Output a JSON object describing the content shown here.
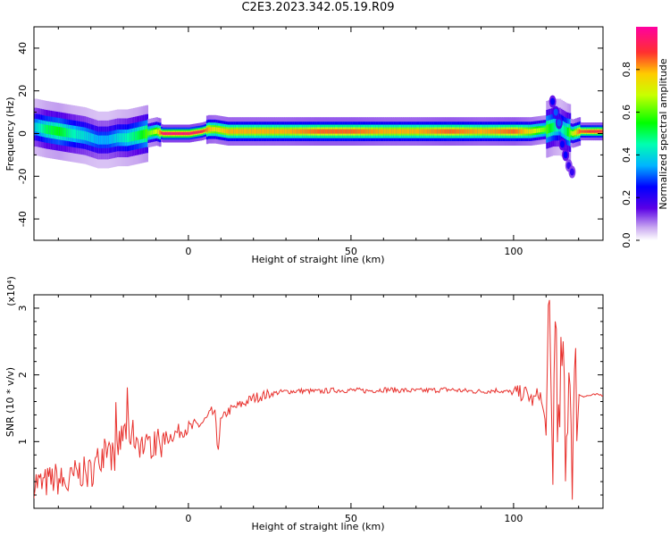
{
  "title": "C2E3.2023.342.05.19.R09",
  "colors": {
    "snr_line": "#e8302c",
    "frame": "#000000"
  },
  "chart_data": [
    {
      "type": "heatmap",
      "title": "C2E3.2023.342.05.19.R09",
      "xlabel": "Height of straight line (km)",
      "ylabel": "Frequency (Hz)",
      "xlim": [
        -47.5,
        127.5
      ],
      "ylim": [
        -50,
        50
      ],
      "x_ticks": [
        "0",
        "50",
        "100"
      ],
      "x_tick_values": [
        0,
        50,
        100
      ],
      "y_ticks": [
        "-40",
        "-20",
        "0",
        "20",
        "40"
      ],
      "y_tick_values": [
        -40,
        -20,
        0,
        20,
        40
      ],
      "colorbar": {
        "label": "Normalized spectral amplitude",
        "range": [
          0,
          1
        ],
        "ticks": [
          "0.0",
          "0.2",
          "0.4",
          "0.6",
          "0.8"
        ],
        "tick_values": [
          0,
          0.2,
          0.4,
          0.6,
          0.8
        ]
      },
      "ridge": {
        "x": [
          -47,
          -44,
          -40,
          -36,
          -32,
          -28,
          -25,
          -22,
          -19,
          -16,
          -13,
          -10,
          -8,
          -4,
          0,
          4,
          6,
          8,
          12,
          20,
          30,
          40,
          50,
          60,
          70,
          80,
          90,
          100,
          105,
          110,
          112,
          114,
          116,
          118,
          120,
          125,
          127.5
        ],
        "y": [
          3,
          2,
          1,
          0,
          -1,
          -3,
          -3,
          -2,
          -2,
          -1,
          0,
          1,
          0,
          0,
          0,
          1,
          2,
          2,
          1,
          1,
          1,
          1,
          1,
          1,
          1,
          1,
          1,
          1,
          1,
          2,
          3,
          3,
          1,
          0,
          1,
          1,
          1
        ],
        "amplitude": [
          0.4,
          0.5,
          0.55,
          0.45,
          0.4,
          0.35,
          0.35,
          0.4,
          0.45,
          0.5,
          0.6,
          0.7,
          0.95,
          0.95,
          0.95,
          0.9,
          0.8,
          0.75,
          0.8,
          0.8,
          0.8,
          0.85,
          0.85,
          0.8,
          0.8,
          0.85,
          0.8,
          0.85,
          0.75,
          0.6,
          0.5,
          0.4,
          0.5,
          0.7,
          0.85,
          0.9,
          0.9
        ]
      },
      "features": {
        "x": [
          112,
          113,
          114,
          115,
          116,
          117,
          118
        ],
        "y": [
          15,
          10,
          5,
          -5,
          -10,
          -15,
          -18
        ],
        "amplitude": [
          0.25,
          0.3,
          0.3,
          0.25,
          0.25,
          0.2,
          0.2
        ]
      }
    },
    {
      "type": "line",
      "xlabel": "Height of straight line (km)",
      "ylabel": "SNR (10 * v/v)",
      "y_multiplier": "(x10⁴)",
      "xlim": [
        -47.5,
        127.5
      ],
      "ylim": [
        0,
        3.2
      ],
      "x_ticks": [
        "0",
        "50",
        "100"
      ],
      "x_tick_values": [
        0,
        50,
        100
      ],
      "y_ticks": [
        "1",
        "2",
        "3"
      ],
      "y_tick_values": [
        1,
        2,
        3
      ],
      "series": [
        {
          "x": [
            -47,
            -45,
            -43,
            -41,
            -39,
            -37,
            -35,
            -33,
            -31,
            -29,
            -27,
            -25,
            -23,
            -21,
            -19,
            -17,
            -15,
            -13,
            -11,
            -9,
            -7,
            -5,
            -3,
            -1,
            1,
            3,
            5,
            7,
            8,
            9,
            10,
            12,
            14,
            16,
            18,
            20,
            22,
            24,
            26,
            28,
            30,
            35,
            40,
            45,
            50,
            55,
            60,
            65,
            70,
            75,
            80,
            85,
            90,
            95,
            100,
            104,
            106,
            108,
            110,
            111,
            112,
            113,
            114,
            115,
            116,
            117,
            118,
            119,
            120,
            122,
            125,
            127.5
          ],
          "y": [
            0.4,
            0.35,
            0.4,
            0.45,
            0.4,
            0.35,
            0.5,
            0.55,
            0.5,
            0.6,
            0.8,
            0.9,
            0.75,
            1.0,
            1.2,
            1.1,
            1.0,
            0.9,
            1.0,
            0.95,
            1.05,
            1.1,
            1.15,
            1.2,
            1.2,
            1.25,
            1.3,
            1.4,
            1.45,
            0.9,
            1.3,
            1.45,
            1.5,
            1.55,
            1.6,
            1.65,
            1.68,
            1.7,
            1.72,
            1.74,
            1.75,
            1.76,
            1.75,
            1.77,
            1.77,
            1.76,
            1.78,
            1.77,
            1.76,
            1.77,
            1.78,
            1.76,
            1.75,
            1.77,
            1.73,
            1.72,
            1.6,
            1.75,
            1.2,
            2.6,
            0.6,
            3.2,
            0.5,
            2.7,
            0.15,
            2.5,
            0.9,
            1.8,
            1.7,
            1.68,
            1.7,
            1.7
          ]
        }
      ]
    }
  ]
}
